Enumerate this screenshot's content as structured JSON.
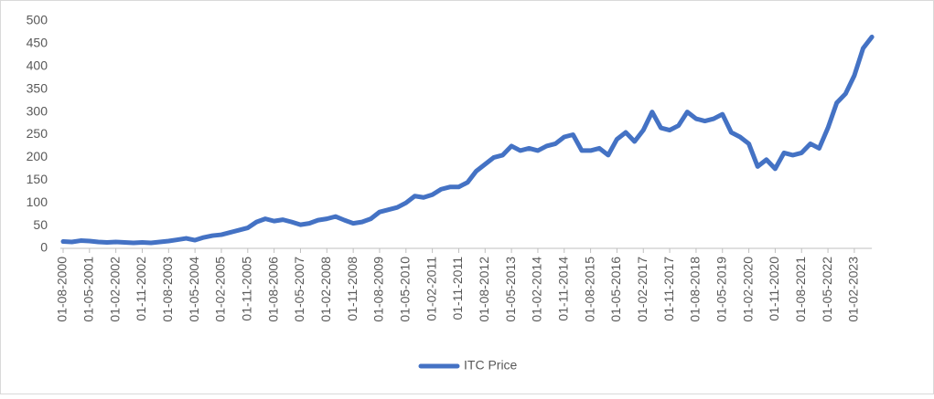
{
  "chart_data": {
    "type": "line",
    "categories": [
      "01-08-2000",
      null,
      null,
      "01-05-2001",
      null,
      null,
      "01-02-2002",
      null,
      null,
      "01-11-2002",
      null,
      null,
      "01-08-2003",
      null,
      null,
      "01-05-2004",
      null,
      null,
      "01-02-2005",
      null,
      null,
      "01-11-2005",
      null,
      null,
      "01-08-2006",
      null,
      null,
      "01-05-2007",
      null,
      null,
      "01-02-2008",
      null,
      null,
      "01-11-2008",
      null,
      null,
      "01-08-2009",
      null,
      null,
      "01-05-2010",
      null,
      null,
      "01-02-2011",
      null,
      null,
      "01-11-2011",
      null,
      null,
      "01-08-2012",
      null,
      null,
      "01-05-2013",
      null,
      null,
      "01-02-2014",
      null,
      null,
      "01-11-2014",
      null,
      null,
      "01-08-2015",
      null,
      null,
      "01-05-2016",
      null,
      null,
      "01-02-2017",
      null,
      null,
      "01-11-2017",
      null,
      null,
      "01-08-2018",
      null,
      null,
      "01-05-2019",
      null,
      null,
      "01-02-2020",
      null,
      null,
      "01-11-2020",
      null,
      null,
      "01-08-2021",
      null,
      null,
      "01-05-2022",
      null,
      null,
      "01-02-2023",
      null,
      null
    ],
    "series": [
      {
        "name": "ITC Price",
        "color": "#4472c4",
        "values": [
          15,
          14,
          17,
          16,
          14,
          13,
          14,
          13,
          12,
          13,
          12,
          14,
          16,
          19,
          22,
          18,
          24,
          28,
          30,
          35,
          40,
          45,
          58,
          65,
          60,
          63,
          58,
          52,
          55,
          62,
          65,
          70,
          62,
          55,
          58,
          65,
          80,
          85,
          90,
          100,
          115,
          112,
          118,
          130,
          135,
          135,
          145,
          170,
          185,
          200,
          205,
          225,
          215,
          220,
          215,
          225,
          230,
          245,
          250,
          215,
          215,
          220,
          205,
          240,
          255,
          235,
          260,
          300,
          265,
          260,
          270,
          300,
          285,
          280,
          285,
          295,
          255,
          245,
          230,
          180,
          195,
          175,
          210,
          205,
          210,
          230,
          220,
          265,
          320,
          340,
          380,
          440,
          465
        ]
      }
    ],
    "ylim": [
      0,
      500
    ],
    "yticks": [
      0,
      50,
      100,
      150,
      200,
      250,
      300,
      350,
      400,
      450,
      500
    ],
    "grid": false,
    "legend": "bottom"
  }
}
